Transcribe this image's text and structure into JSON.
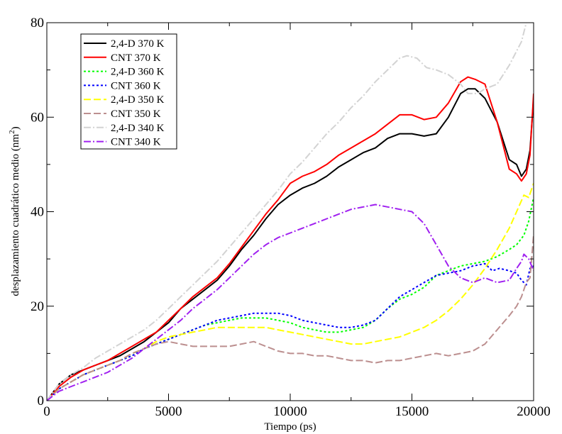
{
  "chart_data": {
    "type": "line",
    "title": "",
    "xlabel": "Tiempo (ps)",
    "ylabel": "desplazamiento cuadrático medio (nm",
    "ylabel_sup": "2",
    "ylabel_close": ")",
    "xlim": [
      0,
      20000
    ],
    "ylim": [
      0,
      80
    ],
    "xticks": [
      0,
      5000,
      10000,
      15000,
      20000
    ],
    "yticks": [
      0,
      20,
      40,
      60,
      80
    ],
    "grid": false,
    "legend_position": "top-left",
    "series": [
      {
        "name": "2,4-D 370 K",
        "color": "#000000",
        "dash": "solid",
        "x": [
          0,
          500,
          1000,
          1500,
          2000,
          2500,
          3000,
          3500,
          4000,
          4500,
          5000,
          5500,
          6000,
          6500,
          7000,
          7500,
          8000,
          8500,
          9000,
          9500,
          10000,
          10500,
          11000,
          11500,
          12000,
          12500,
          13000,
          13500,
          14000,
          14500,
          15000,
          15500,
          16000,
          16500,
          17000,
          17300,
          17600,
          18000,
          18500,
          19000,
          19300,
          19500,
          19700,
          19850,
          20000
        ],
        "y": [
          0,
          3.5,
          5.5,
          6.5,
          7.5,
          8.5,
          9.5,
          11,
          12.5,
          14.5,
          16.5,
          19.5,
          21.5,
          23.5,
          25.5,
          28.5,
          32,
          35,
          38.5,
          41.5,
          43.5,
          45,
          46,
          47.5,
          49.5,
          51,
          52.5,
          53.5,
          55.5,
          56.5,
          56.5,
          56,
          56.5,
          60,
          65,
          66,
          66,
          64,
          59,
          51,
          50,
          47.5,
          49,
          53,
          64
        ]
      },
      {
        "name": "CNT 370 K",
        "color": "#ff0000",
        "dash": "solid",
        "x": [
          0,
          500,
          1000,
          1500,
          2000,
          2500,
          3000,
          3500,
          4000,
          4500,
          5000,
          5500,
          6000,
          6500,
          7000,
          7500,
          8000,
          8500,
          9000,
          9500,
          10000,
          10500,
          11000,
          11500,
          12000,
          12500,
          13000,
          13500,
          14000,
          14500,
          15000,
          15500,
          16000,
          16500,
          17000,
          17300,
          17600,
          18000,
          18500,
          19000,
          19300,
          19500,
          19700,
          19850,
          20000
        ],
        "y": [
          0,
          3,
          5,
          6.5,
          7.5,
          8.5,
          10,
          11.5,
          13,
          14.5,
          17,
          19.5,
          22,
          24,
          26,
          29,
          32.5,
          36,
          39.5,
          42.5,
          46,
          47.5,
          48.5,
          50,
          52,
          53.5,
          55,
          56.5,
          58.5,
          60.5,
          60.5,
          59.5,
          60,
          63,
          67.5,
          68.5,
          68,
          67,
          59,
          49,
          48,
          46.5,
          48,
          52,
          65
        ]
      },
      {
        "name": "2,4-D 360 K",
        "color": "#00ff00",
        "dash": "3,3",
        "x": [
          0,
          500,
          1000,
          1500,
          2000,
          2500,
          3000,
          3500,
          4000,
          4500,
          5000,
          5500,
          6000,
          6500,
          7000,
          7500,
          8000,
          8500,
          9000,
          9500,
          10000,
          10500,
          11000,
          11500,
          12000,
          12500,
          13000,
          13500,
          14000,
          14500,
          15000,
          15500,
          16000,
          16500,
          17000,
          17500,
          18000,
          18500,
          19000,
          19300,
          19600,
          19800,
          20000
        ],
        "y": [
          0,
          2.5,
          4,
          5.5,
          6.5,
          7.5,
          8.5,
          9.5,
          11,
          12,
          13,
          14,
          15,
          16,
          16.5,
          17,
          17.5,
          17.5,
          17.5,
          17,
          16.5,
          15.5,
          15,
          14.5,
          14.5,
          15,
          15.5,
          17,
          19.5,
          21.5,
          22.5,
          24,
          26.5,
          27.5,
          28.5,
          29,
          29.5,
          30.5,
          32,
          33,
          35,
          38,
          43
        ]
      },
      {
        "name": "CNT 360 K",
        "color": "#0000ff",
        "dash": "3,3",
        "x": [
          0,
          500,
          1000,
          1500,
          2000,
          2500,
          3000,
          3500,
          4000,
          4500,
          5000,
          5500,
          6000,
          6500,
          7000,
          7500,
          8000,
          8500,
          9000,
          9500,
          10000,
          10500,
          11000,
          11500,
          12000,
          12500,
          13000,
          13500,
          14000,
          14500,
          15000,
          15500,
          16000,
          16500,
          17000,
          17500,
          18000,
          18300,
          18600,
          19000,
          19300,
          19500,
          19700,
          19850,
          20000
        ],
        "y": [
          0,
          2.5,
          4,
          5.5,
          6.5,
          7.5,
          8.5,
          9.5,
          11,
          12,
          13,
          14,
          15,
          16,
          17,
          17.5,
          18,
          18.5,
          18.5,
          18.5,
          18,
          17,
          16.5,
          16,
          15.5,
          15.5,
          16,
          17,
          19.5,
          22,
          23.5,
          25,
          26.5,
          27,
          27.5,
          28.5,
          29,
          27.5,
          28,
          27.5,
          27,
          25.5,
          24.5,
          28,
          28.5
        ]
      },
      {
        "name": "2,4-D 350 K",
        "color": "#ffff00",
        "dash": "10,4",
        "x": [
          0,
          500,
          1000,
          1500,
          2000,
          2500,
          3000,
          3500,
          4000,
          4500,
          5000,
          5500,
          6000,
          6500,
          7000,
          7500,
          8000,
          8500,
          9000,
          9500,
          10000,
          10500,
          11000,
          11500,
          12000,
          12500,
          13000,
          13500,
          14000,
          14500,
          15000,
          15500,
          16000,
          16500,
          17000,
          17500,
          18000,
          18500,
          19000,
          19300,
          19600,
          19800,
          20000
        ],
        "y": [
          0,
          2.5,
          4,
          5.5,
          6.5,
          7.5,
          8.5,
          10,
          11,
          12.5,
          13.5,
          14,
          14.5,
          15,
          15.5,
          15.5,
          15.5,
          15.5,
          15.5,
          15,
          14.5,
          14,
          13.5,
          13,
          12.5,
          12,
          12,
          12.5,
          13,
          13.5,
          14.5,
          15.5,
          17,
          19,
          21.5,
          24.5,
          28,
          32,
          36.5,
          40,
          43.5,
          43,
          46
        ]
      },
      {
        "name": "CNT 350 K",
        "color": "#bc8f8f",
        "dash": "10,4",
        "x": [
          0,
          500,
          1000,
          1500,
          2000,
          2500,
          3000,
          3500,
          4000,
          4500,
          5000,
          5500,
          6000,
          6500,
          7000,
          7500,
          8000,
          8500,
          9000,
          9500,
          10000,
          10500,
          11000,
          11500,
          12000,
          12500,
          13000,
          13500,
          14000,
          14500,
          15000,
          15500,
          16000,
          16500,
          17000,
          17500,
          18000,
          18500,
          19000,
          19300,
          19500,
          19700,
          19850,
          20000
        ],
        "y": [
          0,
          2.5,
          4,
          5.5,
          6.5,
          7.5,
          8.5,
          10,
          11,
          12,
          12.5,
          12,
          11.5,
          11.5,
          11.5,
          11.5,
          12,
          12.5,
          11.5,
          10.5,
          10,
          10,
          9.5,
          9.5,
          9,
          8.5,
          8.5,
          8,
          8.5,
          8.5,
          9,
          9.5,
          10,
          9.5,
          10,
          10.5,
          12,
          15,
          18,
          20,
          22,
          25,
          26,
          35
        ]
      },
      {
        "name": "2,4-D 340 K",
        "color": "#d3d3d3",
        "dash": "10,3,2,3",
        "x": [
          0,
          500,
          1000,
          1500,
          2000,
          2500,
          3000,
          3500,
          4000,
          4500,
          5000,
          5500,
          6000,
          6500,
          7000,
          7500,
          8000,
          8500,
          9000,
          9500,
          10000,
          10500,
          11000,
          11500,
          12000,
          12500,
          13000,
          13500,
          14000,
          14500,
          14800,
          15200,
          15600,
          16000,
          16500,
          17000,
          17300,
          17700,
          18000,
          18500,
          19000,
          19500,
          19800,
          20000
        ],
        "y": [
          0,
          3.5,
          5.5,
          7,
          9,
          10.5,
          12,
          13.5,
          15,
          17,
          19.5,
          22,
          24.5,
          27,
          29.5,
          32.5,
          35.5,
          38.5,
          41.5,
          44.5,
          48,
          50.5,
          53.5,
          56.5,
          59,
          62,
          64.5,
          67.5,
          70,
          72.5,
          73,
          72.5,
          70.5,
          70,
          69,
          67,
          65,
          65,
          66,
          67,
          71,
          76,
          82,
          85
        ]
      },
      {
        "name": "CNT 340 K",
        "color": "#a020f0",
        "dash": "10,3,2,3",
        "x": [
          0,
          500,
          1000,
          1500,
          2000,
          2500,
          3000,
          3500,
          4000,
          4500,
          5000,
          5500,
          6000,
          6500,
          7000,
          7500,
          8000,
          8500,
          9000,
          9500,
          10000,
          10500,
          11000,
          11500,
          12000,
          12500,
          13000,
          13500,
          14000,
          14500,
          15000,
          15500,
          16000,
          16500,
          17000,
          17500,
          18000,
          18500,
          19000,
          19300,
          19500,
          19600,
          19800,
          20000
        ],
        "y": [
          0,
          2,
          3,
          4,
          5,
          6,
          7.5,
          9,
          11,
          13,
          15,
          17,
          19.5,
          21.5,
          23.5,
          26,
          28.5,
          31,
          33,
          34.5,
          35.5,
          36.5,
          37.5,
          38.5,
          39.5,
          40.5,
          41,
          41.5,
          41,
          40.5,
          40,
          37.5,
          33,
          28.5,
          26,
          25,
          26,
          25,
          25.5,
          28,
          29.5,
          31,
          30,
          27.5
        ]
      }
    ]
  }
}
